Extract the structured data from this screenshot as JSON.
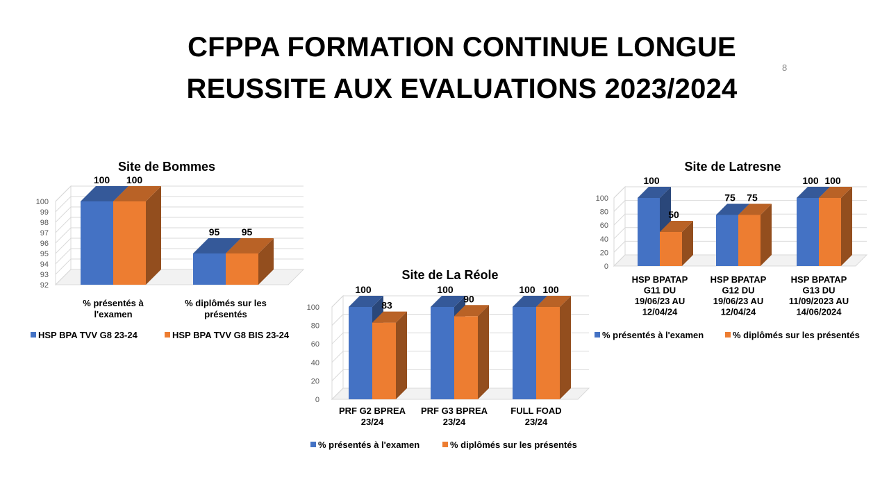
{
  "slide": {
    "title_line1": "CFPPA FORMATION CONTINUE LONGUE",
    "title_line2": "REUSSITE AUX EVALUATIONS 2023/2024",
    "slide_number": "8"
  },
  "colors": {
    "blue": "#4472C4",
    "orange": "#ED7D31",
    "grid": "#D9D9D9",
    "axis_text": "#595959"
  },
  "chart_data": [
    {
      "id": "bommes",
      "type": "bar",
      "title": "Site de Bommes",
      "categories": [
        [
          "% présentés à",
          "l'examen"
        ],
        [
          "% diplômés sur les",
          "présentés"
        ]
      ],
      "series": [
        {
          "name": "HSP BPA TVV G8 23-24",
          "values": [
            100,
            95
          ]
        },
        {
          "name": "HSP BPA TVV G8 BIS 23-24",
          "values": [
            100,
            95
          ]
        }
      ],
      "yticks": [
        92,
        93,
        94,
        95,
        96,
        97,
        98,
        99,
        100
      ],
      "ylim": [
        92,
        100
      ],
      "xlabel": "",
      "ylabel": "",
      "legend": "bottom"
    },
    {
      "id": "lareole",
      "type": "bar",
      "title": "Site de La Réole",
      "categories": [
        [
          "PRF G2 BPREA",
          "23/24"
        ],
        [
          "PRF G3 BPREA",
          "23/24"
        ],
        [
          "FULL FOAD",
          "23/24"
        ]
      ],
      "series": [
        {
          "name": "% présentés à l'examen",
          "values": [
            100,
            100,
            100
          ]
        },
        {
          "name": "% diplômés sur les présentés",
          "values": [
            83,
            90,
            100
          ]
        }
      ],
      "yticks": [
        0,
        20,
        40,
        60,
        80,
        100
      ],
      "ylim": [
        0,
        100
      ],
      "xlabel": "",
      "ylabel": "",
      "legend": "bottom"
    },
    {
      "id": "latresne",
      "type": "bar",
      "title": "Site de Latresne",
      "categories": [
        [
          "HSP BPATAP",
          "G11 DU",
          "19/06/23 AU",
          "12/04/24"
        ],
        [
          "HSP BPATAP",
          "G12 DU",
          "19/06/23 AU",
          "12/04/24"
        ],
        [
          "HSP BPATAP",
          "G13 DU",
          "11/09/2023 AU",
          "14/06/2024"
        ]
      ],
      "series": [
        {
          "name": "% présentés à l'examen",
          "values": [
            100,
            75,
            100
          ]
        },
        {
          "name": "% diplômés sur les présentés",
          "values": [
            50,
            75,
            100
          ]
        }
      ],
      "yticks": [
        0,
        20,
        40,
        60,
        80,
        100
      ],
      "ylim": [
        0,
        100
      ],
      "xlabel": "",
      "ylabel": "",
      "legend": "bottom"
    }
  ]
}
